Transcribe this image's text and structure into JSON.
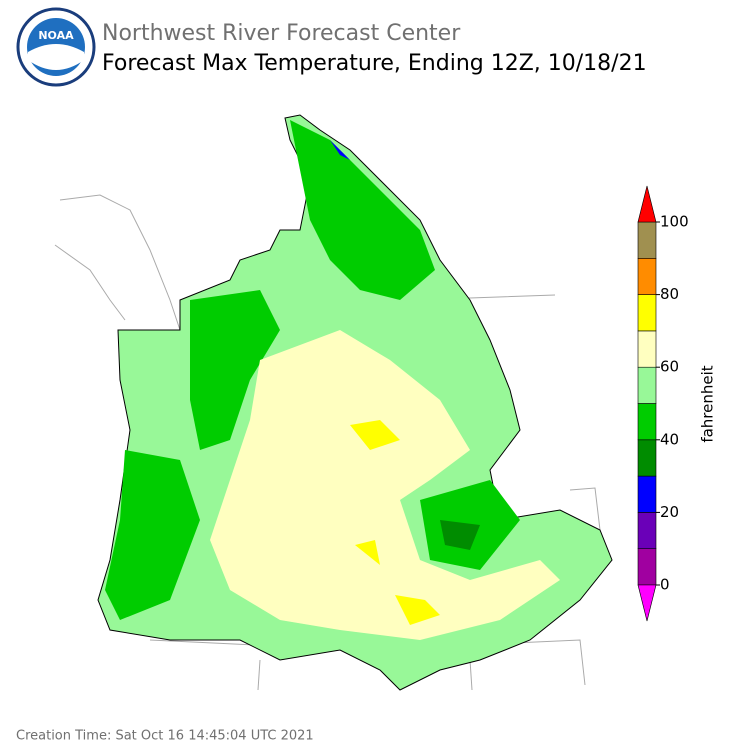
{
  "header": {
    "agency": "Northwest River Forecast Center",
    "title": "Forecast Max Temperature, Ending 12Z, 10/18/21",
    "logo_text": "NOAA"
  },
  "colorbar": {
    "label": "fahrenheit",
    "bounds": [
      0,
      10,
      20,
      30,
      40,
      50,
      60,
      70,
      80,
      90,
      100
    ],
    "colors": [
      "#a000a0",
      "#6a00b8",
      "#0000ff",
      "#008c00",
      "#00cc00",
      "#98f898",
      "#ffffc0",
      "#ffff00",
      "#ff8c00",
      "#a09050"
    ],
    "under_color": "#ff00ff",
    "over_color": "#ff0000",
    "ticks": [
      0,
      20,
      40,
      60,
      80,
      100
    ]
  },
  "footer": {
    "creation_time": "Creation Time: Sat Oct 16 14:45:04 UTC 2021"
  }
}
